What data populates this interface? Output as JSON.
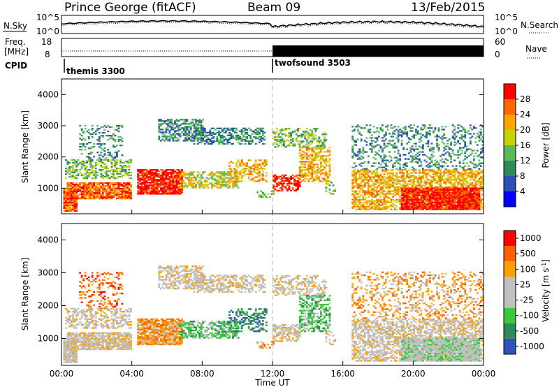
{
  "header": {
    "station": "Prince George (fitACF)",
    "beam": "Beam 09",
    "date": "13/Feb/2015"
  },
  "noise_panel": {
    "left_label": "N.Sky",
    "right_label": "N.Search",
    "left_ticks": [
      "10^5",
      "10^0"
    ],
    "right_ticks": [
      "10^5",
      "10^0"
    ]
  },
  "freq_panel": {
    "left_label_top": "Freq.",
    "left_label_bottom": "[MHz]",
    "left_ticks": [
      "18",
      "8"
    ],
    "right_label": "Nave",
    "right_ticks": [
      "60",
      "0"
    ]
  },
  "cpid": {
    "label": "CPID",
    "modes": [
      "themis 3300",
      "twofsound 3503"
    ]
  },
  "colors": {
    "power": [
      "#0000ff",
      "#2e4fb5",
      "#2e8b57",
      "#5cb85c",
      "#c8d200",
      "#ffa500",
      "#ff6600",
      "#ff0000"
    ],
    "velocity": [
      "#ff0000",
      "#ff6000",
      "#ffa000",
      "#c0c0c0",
      "#c0c0c0",
      "#3cc83c",
      "#2e8b57",
      "#3050c0"
    ]
  },
  "chart_data": [
    {
      "type": "heatmap",
      "name": "power",
      "ylabel": "Slant Range [km]",
      "y_ticks": [
        "1000",
        "2000",
        "3000",
        "4000"
      ],
      "y_tick_values": [
        1000,
        2000,
        3000,
        4000
      ],
      "ylim": [
        180,
        4500
      ],
      "colorbar_label": "Power [dB]",
      "colorbar_ticks": [
        "4",
        "8",
        "12",
        "16",
        "20",
        "24",
        "28"
      ],
      "colorbar_range": [
        0,
        30
      ]
    },
    {
      "type": "heatmap",
      "name": "velocity",
      "ylabel": "Slant Range [km]",
      "y_ticks": [
        "1000",
        "2000",
        "3000",
        "4000"
      ],
      "y_tick_values": [
        1000,
        2000,
        3000,
        4000
      ],
      "ylim": [
        180,
        4500
      ],
      "colorbar_label": "Velocity [m s",
      "colorbar_label_sup": "-1",
      "colorbar_label_end": "]",
      "colorbar_ticks": [
        "1000",
        "500",
        "100",
        "25",
        "-25",
        "-100",
        "-500",
        "-1000"
      ]
    }
  ],
  "x_axis": {
    "label": "Time UT",
    "ticks": [
      "00:00",
      "04:00",
      "08:00",
      "12:00",
      "16:00",
      "20:00",
      "00:00"
    ],
    "tick_hours": [
      0,
      4,
      8,
      12,
      16,
      20,
      24
    ]
  }
}
